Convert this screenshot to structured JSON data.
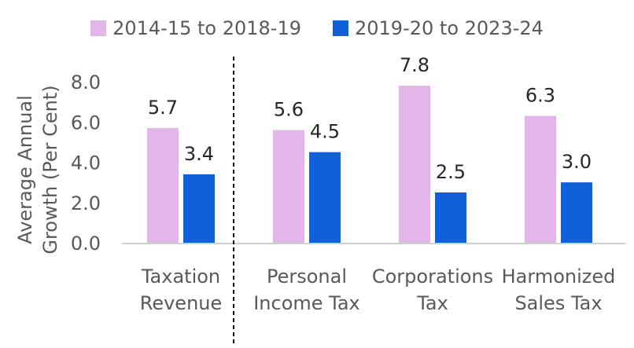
{
  "chart_data": {
    "type": "bar",
    "categories": [
      [
        "Taxation",
        "Revenue"
      ],
      [
        "Personal",
        "Income Tax"
      ],
      [
        "Corporations",
        "Tax"
      ],
      [
        "Harmonized",
        "Sales Tax"
      ]
    ],
    "series": [
      {
        "name": "2014-15 to 2018-19",
        "values": [
          5.7,
          5.6,
          7.8,
          6.3
        ],
        "color": "#E3B6EA"
      },
      {
        "name": "2019-20 to 2023-24",
        "values": [
          3.4,
          4.5,
          2.5,
          3.0
        ],
        "color": "#1160D8"
      }
    ],
    "ylabel": [
      "Average Annual",
      "Growth (Per Cent)"
    ],
    "ylim": [
      0,
      8
    ],
    "yticks": [
      "0.0",
      "2.0",
      "4.0",
      "6.0",
      "8.0"
    ],
    "grid": false,
    "legend": "top-center",
    "separator_after_category": 0
  }
}
